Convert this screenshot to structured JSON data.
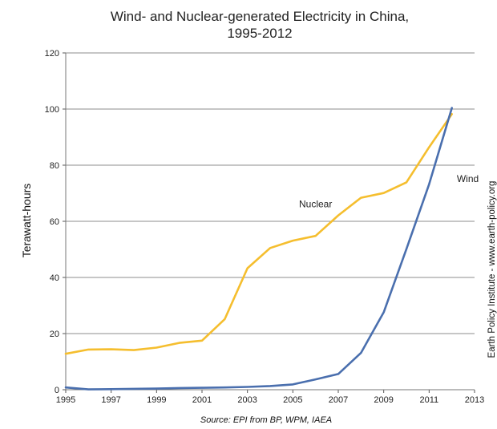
{
  "chart_data": {
    "type": "line",
    "title_line1": "Wind- and Nuclear-generated Electricity in China,",
    "title_line2": "1995-2012",
    "ylabel": "Terawatt-hours",
    "xlabel": "",
    "source": "Source: EPI from BP, WPM, IAEA",
    "credit": "Earth Policy Institute - www.earth-policy.org",
    "xlim": [
      1995,
      2013
    ],
    "ylim": [
      0,
      120
    ],
    "x_ticks": [
      1995,
      1997,
      1999,
      2001,
      2003,
      2005,
      2007,
      2009,
      2011,
      2013
    ],
    "y_ticks": [
      0,
      20,
      40,
      60,
      80,
      100,
      120
    ],
    "grid": "horizontal",
    "series": [
      {
        "name": "Nuclear",
        "color": "#F5BE2E",
        "x": [
          1995,
          1996,
          1997,
          1998,
          1999,
          2000,
          2001,
          2002,
          2003,
          2004,
          2005,
          2006,
          2007,
          2008,
          2009,
          2010,
          2011,
          2012
        ],
        "y": [
          12.8,
          14.3,
          14.4,
          14.1,
          15.0,
          16.7,
          17.5,
          25.1,
          43.3,
          50.5,
          53.1,
          54.8,
          62.1,
          68.4,
          70.1,
          73.9,
          86.4,
          98.2
        ]
      },
      {
        "name": "Wind",
        "color": "#4A6FAE",
        "x": [
          1995,
          1996,
          1997,
          1998,
          1999,
          2000,
          2001,
          2002,
          2003,
          2004,
          2005,
          2006,
          2007,
          2008,
          2009,
          2010,
          2011,
          2012
        ],
        "y": [
          0.8,
          0.1,
          0.2,
          0.3,
          0.4,
          0.6,
          0.7,
          0.8,
          1.0,
          1.3,
          1.9,
          3.7,
          5.6,
          13.1,
          27.6,
          50.1,
          73.2,
          100.4
        ]
      }
    ]
  }
}
